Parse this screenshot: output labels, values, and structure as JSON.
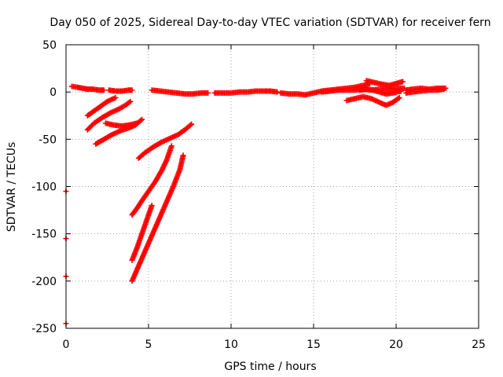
{
  "chart_data": {
    "type": "scatter",
    "title": "Day 050 of 2025, Sidereal Day-to-day VTEC variation (SDTVAR) for receiver fern",
    "xlabel": "GPS time / hours",
    "ylabel": "SDTVAR / TECUs",
    "xlim": [
      0,
      25
    ],
    "ylim": [
      -250,
      50
    ],
    "xticks": [
      0,
      5,
      10,
      15,
      20,
      25
    ],
    "yticks": [
      50,
      0,
      -50,
      -100,
      -150,
      -200,
      -250
    ],
    "xtick_labels": [
      "0",
      "5",
      "10",
      "15",
      "20",
      "25"
    ],
    "ytick_labels": [
      "50",
      "0",
      "-50",
      "-100",
      "-150",
      "-200",
      "-250"
    ],
    "grid": true,
    "marker": "+",
    "series": [
      {
        "name": "SDTVAR",
        "color": "#ff0000",
        "tracks": [
          [
            [
              0.35,
              6
            ],
            [
              0.7,
              5
            ],
            [
              1.0,
              4
            ],
            [
              1.3,
              3
            ],
            [
              1.6,
              3
            ],
            [
              2.0,
              2
            ],
            [
              2.3,
              2
            ]
          ],
          [
            [
              2.6,
              2
            ],
            [
              3.0,
              1
            ],
            [
              3.4,
              1
            ],
            [
              3.8,
              2
            ],
            [
              4.0,
              2
            ]
          ],
          [
            [
              1.3,
              -25
            ],
            [
              1.7,
              -20
            ],
            [
              2.1,
              -15
            ],
            [
              2.5,
              -10
            ],
            [
              3.0,
              -6
            ]
          ],
          [
            [
              1.3,
              -40
            ],
            [
              1.7,
              -33
            ],
            [
              2.2,
              -27
            ],
            [
              2.7,
              -22
            ],
            [
              3.2,
              -18
            ],
            [
              3.6,
              -14
            ],
            [
              3.9,
              -10
            ]
          ],
          [
            [
              1.8,
              -55
            ],
            [
              2.3,
              -50
            ],
            [
              2.8,
              -45
            ],
            [
              3.3,
              -41
            ],
            [
              3.8,
              -38
            ],
            [
              4.2,
              -35
            ],
            [
              4.6,
              -29
            ]
          ],
          [
            [
              2.4,
              -33
            ],
            [
              2.9,
              -35
            ],
            [
              3.4,
              -36
            ],
            [
              3.8,
              -35
            ],
            [
              4.3,
              -33
            ]
          ],
          [
            [
              4.4,
              -70
            ],
            [
              4.8,
              -64
            ],
            [
              5.3,
              -58
            ],
            [
              5.8,
              -53
            ],
            [
              6.3,
              -49
            ],
            [
              6.8,
              -45
            ],
            [
              7.2,
              -40
            ],
            [
              7.6,
              -34
            ]
          ],
          [
            [
              4.0,
              -130
            ],
            [
              4.3,
              -123
            ],
            [
              4.6,
              -115
            ],
            [
              5.0,
              -105
            ],
            [
              5.4,
              -95
            ],
            [
              5.8,
              -83
            ],
            [
              6.1,
              -72
            ],
            [
              6.4,
              -57
            ]
          ],
          [
            [
              4.0,
              -178
            ],
            [
              4.3,
              -165
            ],
            [
              4.6,
              -150
            ],
            [
              4.9,
              -135
            ],
            [
              5.2,
              -120
            ]
          ],
          [
            [
              4.0,
              -200
            ],
            [
              4.5,
              -180
            ],
            [
              5.0,
              -160
            ],
            [
              5.5,
              -140
            ],
            [
              6.0,
              -120
            ],
            [
              6.5,
              -100
            ],
            [
              6.9,
              -82
            ],
            [
              7.1,
              -67
            ]
          ],
          [
            [
              5.2,
              2
            ],
            [
              5.7,
              1
            ],
            [
              6.2,
              0
            ],
            [
              6.7,
              -1
            ],
            [
              7.2,
              -2
            ],
            [
              7.7,
              -2
            ],
            [
              8.2,
              -1
            ],
            [
              8.6,
              -1
            ]
          ],
          [
            [
              9.0,
              -1
            ],
            [
              9.5,
              -1
            ],
            [
              10.0,
              -1
            ],
            [
              10.5,
              0
            ],
            [
              11.0,
              0
            ],
            [
              11.5,
              1
            ],
            [
              12.0,
              1
            ],
            [
              12.4,
              1
            ],
            [
              12.8,
              0
            ]
          ],
          [
            [
              13.0,
              -1
            ],
            [
              13.5,
              -2
            ],
            [
              14.0,
              -2
            ],
            [
              14.5,
              -3
            ],
            [
              15.0,
              -1
            ],
            [
              15.5,
              1
            ],
            [
              16.0,
              2
            ],
            [
              16.5,
              3
            ],
            [
              17.0,
              4
            ],
            [
              17.5,
              5
            ],
            [
              18.0,
              7
            ],
            [
              18.4,
              9
            ]
          ],
          [
            [
              15.5,
              0
            ],
            [
              16.0,
              1
            ],
            [
              16.5,
              2
            ],
            [
              17.0,
              2
            ],
            [
              17.5,
              2
            ],
            [
              18.0,
              3
            ],
            [
              18.5,
              2
            ],
            [
              19.0,
              3
            ],
            [
              19.5,
              3
            ],
            [
              20.0,
              4
            ],
            [
              20.5,
              4
            ]
          ],
          [
            [
              18.2,
              12
            ],
            [
              18.7,
              10
            ],
            [
              19.2,
              8
            ],
            [
              19.6,
              7
            ],
            [
              20.0,
              9
            ],
            [
              20.4,
              11
            ]
          ],
          [
            [
              17.8,
              2
            ],
            [
              18.2,
              3
            ],
            [
              18.6,
              2
            ],
            [
              19.0,
              0
            ],
            [
              19.4,
              -2
            ],
            [
              19.8,
              -1
            ],
            [
              20.3,
              1
            ]
          ],
          [
            [
              17.0,
              -9
            ],
            [
              17.5,
              -7
            ],
            [
              18.0,
              -5
            ],
            [
              18.5,
              -7
            ],
            [
              19.0,
              -11
            ],
            [
              19.4,
              -14
            ],
            [
              19.8,
              -11
            ],
            [
              20.2,
              -6
            ]
          ],
          [
            [
              20.6,
              2
            ],
            [
              21.0,
              3
            ],
            [
              21.5,
              4
            ],
            [
              22.0,
              3
            ],
            [
              22.5,
              4
            ],
            [
              23.0,
              4
            ]
          ],
          [
            [
              20.6,
              -1
            ],
            [
              21.0,
              0
            ],
            [
              21.5,
              1
            ],
            [
              22.0,
              2
            ],
            [
              22.5,
              2
            ],
            [
              22.9,
              3
            ]
          ],
          [
            [
              0.0,
              -105
            ]
          ],
          [
            [
              0.0,
              -155
            ]
          ],
          [
            [
              0.0,
              -195
            ]
          ],
          [
            [
              0.0,
              -245
            ]
          ]
        ]
      }
    ]
  }
}
